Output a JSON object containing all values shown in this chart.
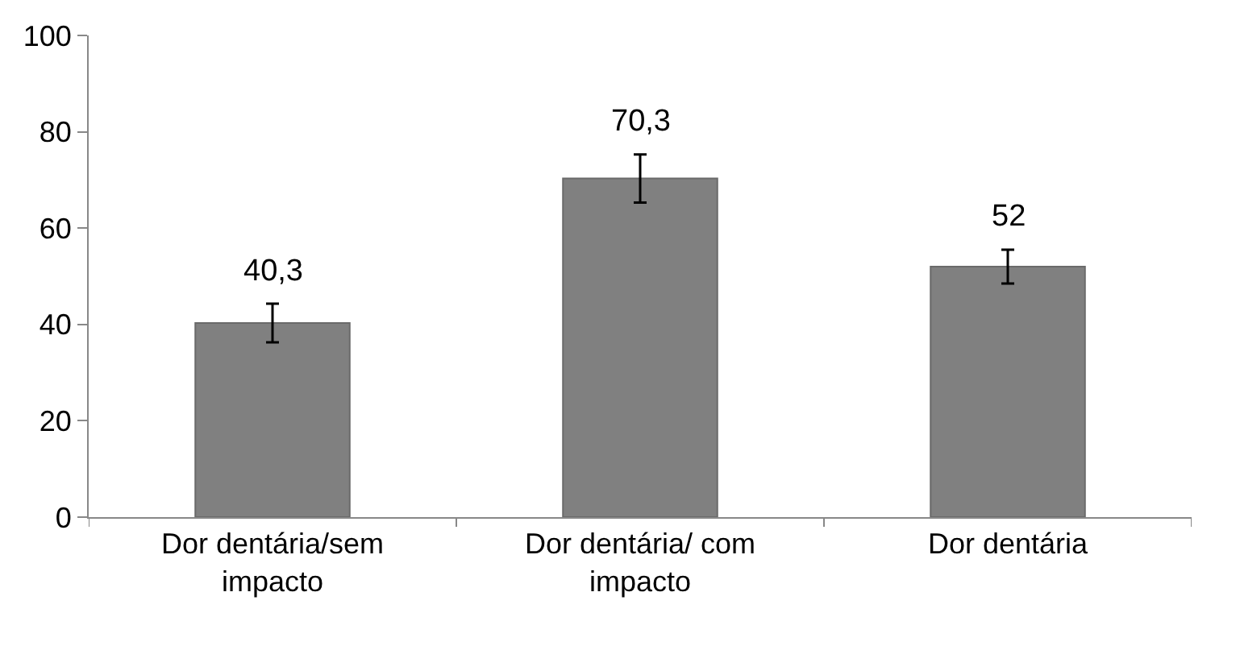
{
  "chart_data": {
    "type": "bar",
    "categories": [
      "Dor dentária/sem impacto",
      "Dor dentária/ com impacto",
      "Dor dentária"
    ],
    "values": [
      40.3,
      70.3,
      52
    ],
    "errors": [
      4,
      5,
      3.5
    ],
    "value_labels": [
      "40,3",
      "70,3",
      "52"
    ],
    "color": "#808080",
    "ylim": [
      0,
      100
    ],
    "yticks": [
      0,
      20,
      40,
      60,
      80,
      100
    ]
  }
}
